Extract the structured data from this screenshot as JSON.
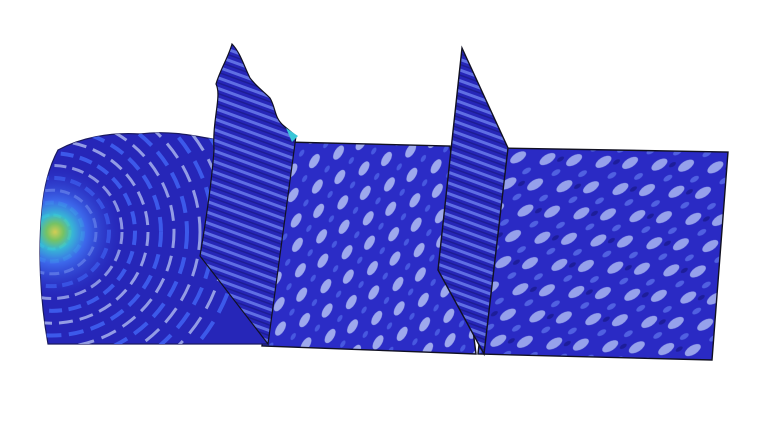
{
  "scene": {
    "background": "#ffffff",
    "colormap": {
      "deep": "#1a1a8c",
      "base": "#2929c8",
      "mid": "#3f5ff0",
      "light": "#b8c4f4",
      "cyan": "#39c6d8",
      "green": "#7fd45a",
      "yellow": "#e6e04a"
    },
    "edge_color": "#111122",
    "objects": [
      {
        "id": "source-plate",
        "description_icon": "wave-source-plate"
      },
      {
        "id": "barrier-1",
        "description_icon": "standing-barrier"
      },
      {
        "id": "middle-plate",
        "description_icon": "flat-plate"
      },
      {
        "id": "barrier-2",
        "description_icon": "standing-barrier"
      },
      {
        "id": "end-plate",
        "description_icon": "flat-plate"
      }
    ]
  }
}
